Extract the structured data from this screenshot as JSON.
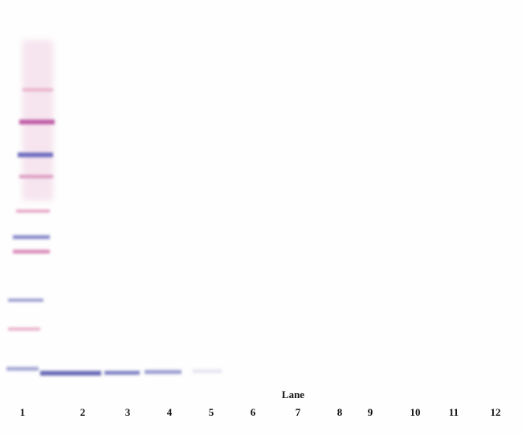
{
  "axis_label": "Lane",
  "lanes": [
    "1",
    "2",
    "3",
    "4",
    "5",
    "6",
    "7",
    "8",
    "9",
    "10",
    "11",
    "12"
  ]
}
